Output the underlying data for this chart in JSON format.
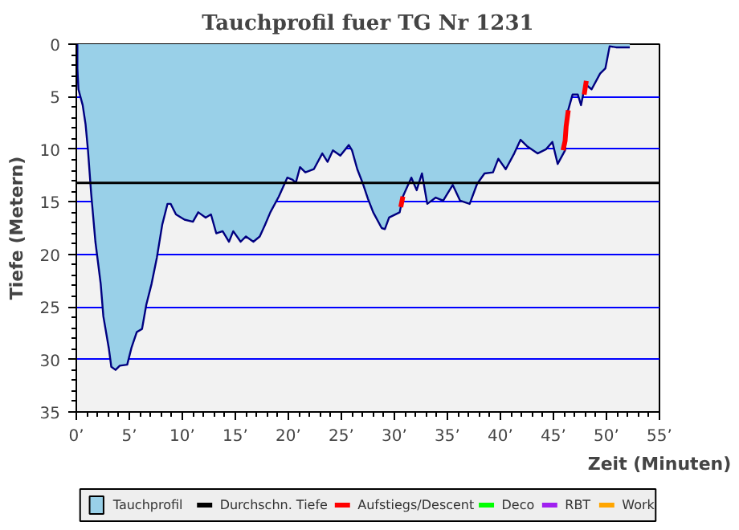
{
  "chart_data": {
    "type": "area",
    "title": "Tauchprofil fuer TG Nr 1231",
    "xlabel": "Zeit (Minuten)",
    "ylabel": "Tiefe (Metern)",
    "x": [
      0.1,
      0.1,
      0.2,
      0.6,
      0.87,
      1.1,
      1.4,
      1.8,
      2.3,
      2.55,
      3.06,
      3.3,
      3.7,
      4.1,
      4.8,
      5.2,
      5.7,
      6.2,
      6.6,
      7.1,
      7.6,
      8.1,
      8.6,
      8.9,
      9.4,
      10.2,
      11.0,
      11.5,
      12.2,
      12.7,
      13.2,
      13.8,
      14.4,
      14.8,
      15.5,
      16.0,
      16.7,
      17.3,
      17.8,
      18.3,
      19.1,
      19.9,
      20.4,
      20.7,
      21.1,
      21.6,
      22.4,
      23.2,
      23.7,
      24.2,
      24.9,
      25.7,
      26.0,
      26.5,
      27.0,
      27.5,
      28.0,
      28.8,
      29.1,
      29.5,
      30.5,
      30.8,
      31.6,
      32.1,
      32.6,
      33.1,
      33.9,
      34.6,
      35.5,
      36.2,
      37.1,
      37.8,
      38.5,
      39.3,
      39.8,
      40.5,
      41.3,
      41.9,
      42.5,
      43.5,
      44.3,
      44.9,
      45.4,
      46.1,
      46.3,
      46.8,
      47.3,
      47.6,
      48.0,
      48.6,
      49.4,
      49.9,
      50.3,
      50.9,
      52.2
    ],
    "series": [
      {
        "name": "Tauchprofil",
        "color": "#99d0e8",
        "values": [
          0,
          2.3,
          4.3,
          5.8,
          7.6,
          10.1,
          14.2,
          18.8,
          22.8,
          25.9,
          28.9,
          30.7,
          31.0,
          30.6,
          30.5,
          28.9,
          27.4,
          27.1,
          24.8,
          22.8,
          20.3,
          17.2,
          15.2,
          15.2,
          16.2,
          16.7,
          16.9,
          16.0,
          16.5,
          16.2,
          18.0,
          17.8,
          18.8,
          17.8,
          18.8,
          18.3,
          18.8,
          18.3,
          17.2,
          16.0,
          14.5,
          12.7,
          12.9,
          13.2,
          11.7,
          12.2,
          11.9,
          10.4,
          11.2,
          10.1,
          10.6,
          9.6,
          10.1,
          11.9,
          13.2,
          14.7,
          16.0,
          17.5,
          17.6,
          16.5,
          16.0,
          14.5,
          12.7,
          13.9,
          12.3,
          15.2,
          14.6,
          14.9,
          13.4,
          14.9,
          15.2,
          13.3,
          12.3,
          12.2,
          10.9,
          11.9,
          10.4,
          9.1,
          9.7,
          10.4,
          10.0,
          9.3,
          11.4,
          10.1,
          6.6,
          4.8,
          4.8,
          5.8,
          3.8,
          4.3,
          2.8,
          2.3,
          0.2,
          0.3,
          0.3
        ]
      },
      {
        "name": "Aufstiegs/Descent",
        "type": "line",
        "color": "#ff0000",
        "x": [
          30.6,
          30.8
        ],
        "values": [
          15.5,
          14.5
        ]
      },
      {
        "type": "line",
        "color": "#ff0000",
        "x": [
          45.9,
          46.1,
          46.2,
          46.4
        ],
        "values": [
          10.1,
          9.2,
          7.8,
          6.3
        ]
      },
      {
        "type": "line",
        "color": "#ff0000",
        "x": [
          47.9,
          48.1
        ],
        "values": [
          4.8,
          3.5
        ]
      },
      {
        "name": "Deco",
        "type": "line",
        "color": "#00ff00",
        "values": [
          null,
          null,
          null,
          null,
          null,
          null,
          null,
          null,
          null,
          null,
          null,
          null,
          null,
          null,
          null,
          null,
          null,
          null,
          null,
          null,
          null,
          null,
          null,
          null,
          null,
          null,
          null,
          null,
          null,
          null,
          null,
          null,
          null,
          null,
          null,
          null,
          null,
          null,
          null,
          null,
          null,
          null,
          null,
          null,
          null,
          null,
          null,
          null,
          null,
          null,
          null,
          null,
          null,
          null,
          null,
          null,
          null,
          null,
          null,
          null,
          null,
          null,
          null,
          null,
          null,
          null,
          null,
          null,
          null,
          null,
          null,
          null,
          null,
          null,
          null,
          null,
          null,
          null,
          null,
          null,
          null,
          null,
          null,
          null,
          null,
          null,
          null,
          null,
          null,
          null,
          null,
          null,
          null,
          null,
          null
        ]
      },
      {
        "name": "RBT",
        "type": "line",
        "color": "#a020f0",
        "values": [
          null,
          null,
          null,
          null,
          null,
          null,
          null,
          null,
          null,
          null,
          null,
          null,
          null,
          null,
          null,
          null,
          null,
          null,
          null,
          null,
          null,
          null,
          null,
          null,
          null,
          null,
          null,
          null,
          null,
          null,
          null,
          null,
          null,
          null,
          null,
          null,
          null,
          null,
          null,
          null,
          null,
          null,
          null,
          null,
          null,
          null,
          null,
          null,
          null,
          null,
          null,
          null,
          null,
          null,
          null,
          null,
          null,
          null,
          null,
          null,
          null,
          null,
          null,
          null,
          null,
          null,
          null,
          null,
          null,
          null,
          null,
          null,
          null,
          null,
          null,
          null,
          null,
          null,
          null,
          null,
          null,
          null,
          null,
          null,
          null,
          null,
          null,
          null,
          null,
          null,
          null,
          null,
          null,
          null,
          null
        ]
      },
      {
        "name": "Work",
        "type": "line",
        "color": "#ffa500",
        "values": [
          null,
          null,
          null,
          null,
          null,
          null,
          null,
          null,
          null,
          null,
          null,
          null,
          null,
          null,
          null,
          null,
          null,
          null,
          null,
          null,
          null,
          null,
          null,
          null,
          null,
          null,
          null,
          null,
          null,
          null,
          null,
          null,
          null,
          null,
          null,
          null,
          null,
          null,
          null,
          null,
          null,
          null,
          null,
          null,
          null,
          null,
          null,
          null,
          null,
          null,
          null,
          null,
          null,
          null,
          null,
          null,
          null,
          null,
          null,
          null,
          null,
          null,
          null,
          null,
          null,
          null,
          null,
          null,
          null,
          null,
          null,
          null,
          null,
          null,
          null,
          null,
          null,
          null,
          null,
          null,
          null,
          null,
          null,
          null,
          null,
          null,
          null,
          null,
          null,
          null,
          null,
          null,
          null,
          null,
          null
        ]
      }
    ],
    "ref_lines": [
      {
        "axis": "y",
        "value": 13.2,
        "label": "Durchschn. Tiefe",
        "color": "#000000"
      }
    ],
    "xlim": [
      0,
      55
    ],
    "ylim": [
      35,
      0
    ],
    "xticks": [
      {
        "value": 0,
        "label": "0’"
      },
      {
        "value": 5,
        "label": "5’"
      },
      {
        "value": 10,
        "label": "10’"
      },
      {
        "value": 15,
        "label": "15’"
      },
      {
        "value": 20,
        "label": "20’"
      },
      {
        "value": 25,
        "label": "25’"
      },
      {
        "value": 30,
        "label": "30’"
      },
      {
        "value": 35,
        "label": "35’"
      },
      {
        "value": 40,
        "label": "40’"
      },
      {
        "value": 45,
        "label": "45’"
      },
      {
        "value": 50,
        "label": "50’"
      },
      {
        "value": 55,
        "label": "55’"
      }
    ],
    "yticks": [
      0,
      5,
      10,
      15,
      20,
      25,
      30,
      35
    ],
    "grid": "y",
    "legend": "bottom"
  }
}
